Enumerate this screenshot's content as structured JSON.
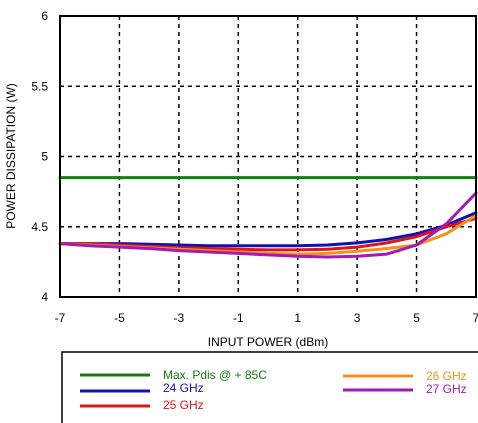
{
  "chart_data": {
    "type": "line",
    "xlabel": "INPUT POWER  (dBm)",
    "ylabel": "POWER DISSIPATION (W)",
    "xlim": [
      -7,
      7
    ],
    "ylim": [
      4,
      6
    ],
    "x_ticks": [
      "-7",
      "-5",
      "-3",
      "-1",
      "1",
      "3",
      "5",
      "7"
    ],
    "y_ticks": [
      "4",
      "4.5",
      "5",
      "5.5",
      "6"
    ],
    "grid": true,
    "legend_position": "bottom",
    "series": [
      {
        "name": "Max. Pdis @ + 85C",
        "color": "#118011",
        "x": [
          -7,
          7
        ],
        "values": [
          4.85,
          4.85
        ]
      },
      {
        "name": "24 GHz",
        "color": "#1010bb",
        "x": [
          -7,
          -6,
          -5,
          -4,
          -3,
          -2,
          -1,
          0,
          1,
          2,
          3,
          4,
          5,
          6,
          7
        ],
        "values": [
          4.38,
          4.38,
          4.38,
          4.375,
          4.37,
          4.365,
          4.365,
          4.365,
          4.365,
          4.37,
          4.385,
          4.41,
          4.45,
          4.51,
          4.6
        ]
      },
      {
        "name": "25 GHz",
        "color": "#dd1515",
        "x": [
          -7,
          -6,
          -5,
          -4,
          -3,
          -2,
          -1,
          0,
          1,
          2,
          3,
          4,
          5,
          6,
          7
        ],
        "values": [
          4.38,
          4.38,
          4.37,
          4.36,
          4.35,
          4.345,
          4.34,
          4.335,
          4.335,
          4.34,
          4.355,
          4.385,
          4.43,
          4.5,
          4.56
        ]
      },
      {
        "name": "26 GHz",
        "color": "#f5901e",
        "x": [
          -7,
          -6,
          -5,
          -4,
          -3,
          -2,
          -1,
          0,
          1,
          2,
          3,
          4,
          5,
          6,
          7
        ],
        "values": [
          4.38,
          4.37,
          4.36,
          4.35,
          4.34,
          4.33,
          4.32,
          4.31,
          4.305,
          4.31,
          4.325,
          4.345,
          4.37,
          4.45,
          4.58
        ]
      },
      {
        "name": "27 GHz",
        "color": "#a31ab5",
        "x": [
          -7,
          -6,
          -5,
          -4,
          -3,
          -2,
          -1,
          0,
          1,
          2,
          3,
          4,
          5,
          6,
          7
        ],
        "values": [
          4.38,
          4.365,
          4.355,
          4.345,
          4.33,
          4.32,
          4.31,
          4.3,
          4.29,
          4.285,
          4.29,
          4.305,
          4.37,
          4.52,
          4.74
        ]
      }
    ]
  }
}
